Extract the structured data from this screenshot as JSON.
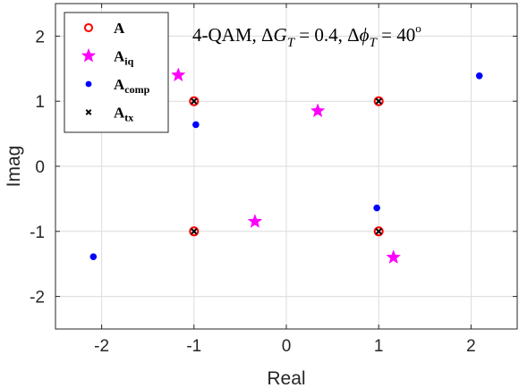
{
  "chart_data": {
    "type": "scatter",
    "title": "",
    "xlabel": "Real",
    "ylabel": "Imag",
    "xlim": [
      -2.5,
      2.5
    ],
    "ylim": [
      -2.5,
      2.5
    ],
    "xticks": [
      -2,
      -1,
      0,
      1,
      2
    ],
    "yticks": [
      -2,
      -1,
      0,
      1,
      2
    ],
    "xtick_labels": [
      "-2",
      "-1",
      "0",
      "1",
      "2"
    ],
    "ytick_labels": [
      "-2",
      "-1",
      "0",
      "1",
      "2"
    ],
    "grid": true,
    "legend_position": "top-left",
    "annotation": {
      "parts": [
        "4-QAM, Δ",
        "G",
        "T",
        " = 0.4, Δ",
        "ϕ",
        "T",
        " = 40",
        "o"
      ]
    },
    "series": [
      {
        "name": "A",
        "sub": "",
        "marker": "circle-open",
        "color": "#ff0000",
        "points": [
          [
            -1,
            1
          ],
          [
            1,
            1
          ],
          [
            -1,
            -1
          ],
          [
            1,
            -1
          ]
        ]
      },
      {
        "name": "A",
        "sub": "iq",
        "marker": "star",
        "color": "#ff00ff",
        "points": [
          [
            -1.17,
            1.4
          ],
          [
            0.34,
            0.85
          ],
          [
            -0.34,
            -0.85
          ],
          [
            1.16,
            -1.4
          ]
        ]
      },
      {
        "name": "A",
        "sub": "comp",
        "marker": "dot",
        "color": "#0000ff",
        "points": [
          [
            -0.98,
            0.64
          ],
          [
            2.09,
            1.39
          ],
          [
            0.98,
            -0.64
          ],
          [
            -2.09,
            -1.39
          ]
        ]
      },
      {
        "name": "A",
        "sub": "tx",
        "marker": "x",
        "color": "#000000",
        "points": [
          [
            -1,
            1
          ],
          [
            1,
            1
          ],
          [
            -1,
            -1
          ],
          [
            1,
            -1
          ]
        ]
      }
    ]
  }
}
